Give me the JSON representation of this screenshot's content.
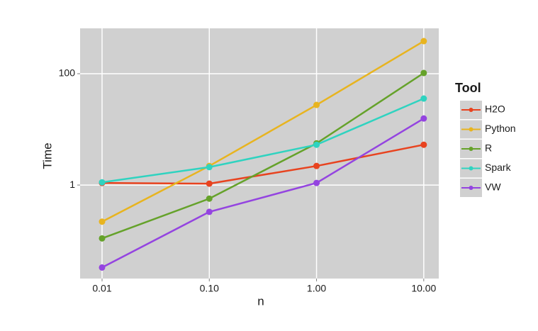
{
  "chart_data": {
    "type": "line",
    "x_label": "n",
    "y_label": "Time",
    "legend_title": "Tool",
    "x": [
      0.01,
      0.1,
      1,
      10
    ],
    "series": [
      {
        "name": "H2O",
        "color": "#e8431f",
        "values": [
          1.09,
          1.06,
          2.2,
          5.3
        ]
      },
      {
        "name": "Python",
        "color": "#e8b41f",
        "values": [
          0.22,
          2.2,
          27.5,
          385
        ]
      },
      {
        "name": "R",
        "color": "#65a22a",
        "values": [
          0.11,
          0.57,
          5.6,
          103
        ]
      },
      {
        "name": "Spark",
        "color": "#2fd3c0",
        "values": [
          1.12,
          2.1,
          5.3,
          35.8
        ]
      },
      {
        "name": "VW",
        "color": "#9444e0",
        "values": [
          0.033,
          0.33,
          1.09,
          15.7
        ]
      }
    ],
    "xlim": [
      0.00624,
      13.8
    ],
    "ylim": [
      0.0209,
      653
    ],
    "xticks": [
      0.01,
      {
        "value": 0.1,
        "label": "0.10"
      },
      {
        "value": 1,
        "label": "1.00"
      },
      {
        "value": 10,
        "label": "10.00"
      }
    ],
    "yticks": [
      1,
      100
    ],
    "x_log": true,
    "y_log": true,
    "grid": true,
    "legend_position": "right"
  }
}
